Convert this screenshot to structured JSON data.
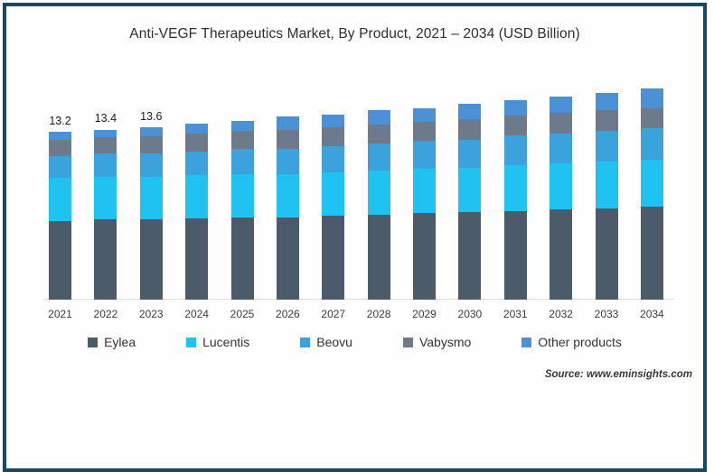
{
  "title": "Anti-VEGF Therapeutics Market, By Product, 2021 – 2034 (USD Billion)",
  "source_note": "Source: www.eminsights.com",
  "frame": {
    "border_color": "#164a63",
    "background": "#fefefe"
  },
  "chart_data": {
    "type": "bar",
    "stacked": true,
    "title": "Anti-VEGF Therapeutics Market, By Product, 2021 – 2034 (USD Billion)",
    "xlabel": "",
    "ylabel": "",
    "unit": "USD Billion",
    "grid": false,
    "legend_position": "bottom",
    "axis_line_color": "#dcdcdc",
    "ylim": [
      0,
      17.2
    ],
    "categories": [
      "2021",
      "2022",
      "2023",
      "2024",
      "2025",
      "2026",
      "2027",
      "2028",
      "2029",
      "2030",
      "2031",
      "2032",
      "2033",
      "2034"
    ],
    "series": [
      {
        "name": "Eylea",
        "color": "#4c5b6a",
        "values": [
          6.2,
          6.3,
          6.3,
          6.4,
          6.5,
          6.5,
          6.6,
          6.7,
          6.8,
          6.9,
          7.0,
          7.1,
          7.2,
          7.3
        ]
      },
      {
        "name": "Lucentis",
        "color": "#1fc2f1",
        "values": [
          3.4,
          3.4,
          3.4,
          3.4,
          3.4,
          3.4,
          3.4,
          3.5,
          3.5,
          3.5,
          3.6,
          3.6,
          3.7,
          3.7
        ]
      },
      {
        "name": "Beovu",
        "color": "#3ba2dc",
        "values": [
          1.7,
          1.8,
          1.8,
          1.9,
          2.0,
          2.0,
          2.1,
          2.1,
          2.2,
          2.2,
          2.3,
          2.4,
          2.4,
          2.5
        ]
      },
      {
        "name": "Vabysmo",
        "color": "#6d7a8b",
        "values": [
          1.3,
          1.3,
          1.4,
          1.4,
          1.4,
          1.5,
          1.5,
          1.5,
          1.5,
          1.6,
          1.6,
          1.6,
          1.6,
          1.6
        ]
      },
      {
        "name": "Other products",
        "color": "#4c90d6",
        "values": [
          0.6,
          0.6,
          0.7,
          0.8,
          0.8,
          1.0,
          1.0,
          1.1,
          1.1,
          1.2,
          1.2,
          1.3,
          1.4,
          1.5
        ]
      }
    ],
    "totals": [
      13.2,
      13.4,
      13.6,
      13.9,
      14.1,
      14.4,
      14.6,
      14.9,
      15.1,
      15.4,
      15.7,
      16.0,
      16.3,
      16.6
    ],
    "value_labels": {
      "2021": "13.2",
      "2022": "13.4",
      "2023": "13.6"
    }
  }
}
